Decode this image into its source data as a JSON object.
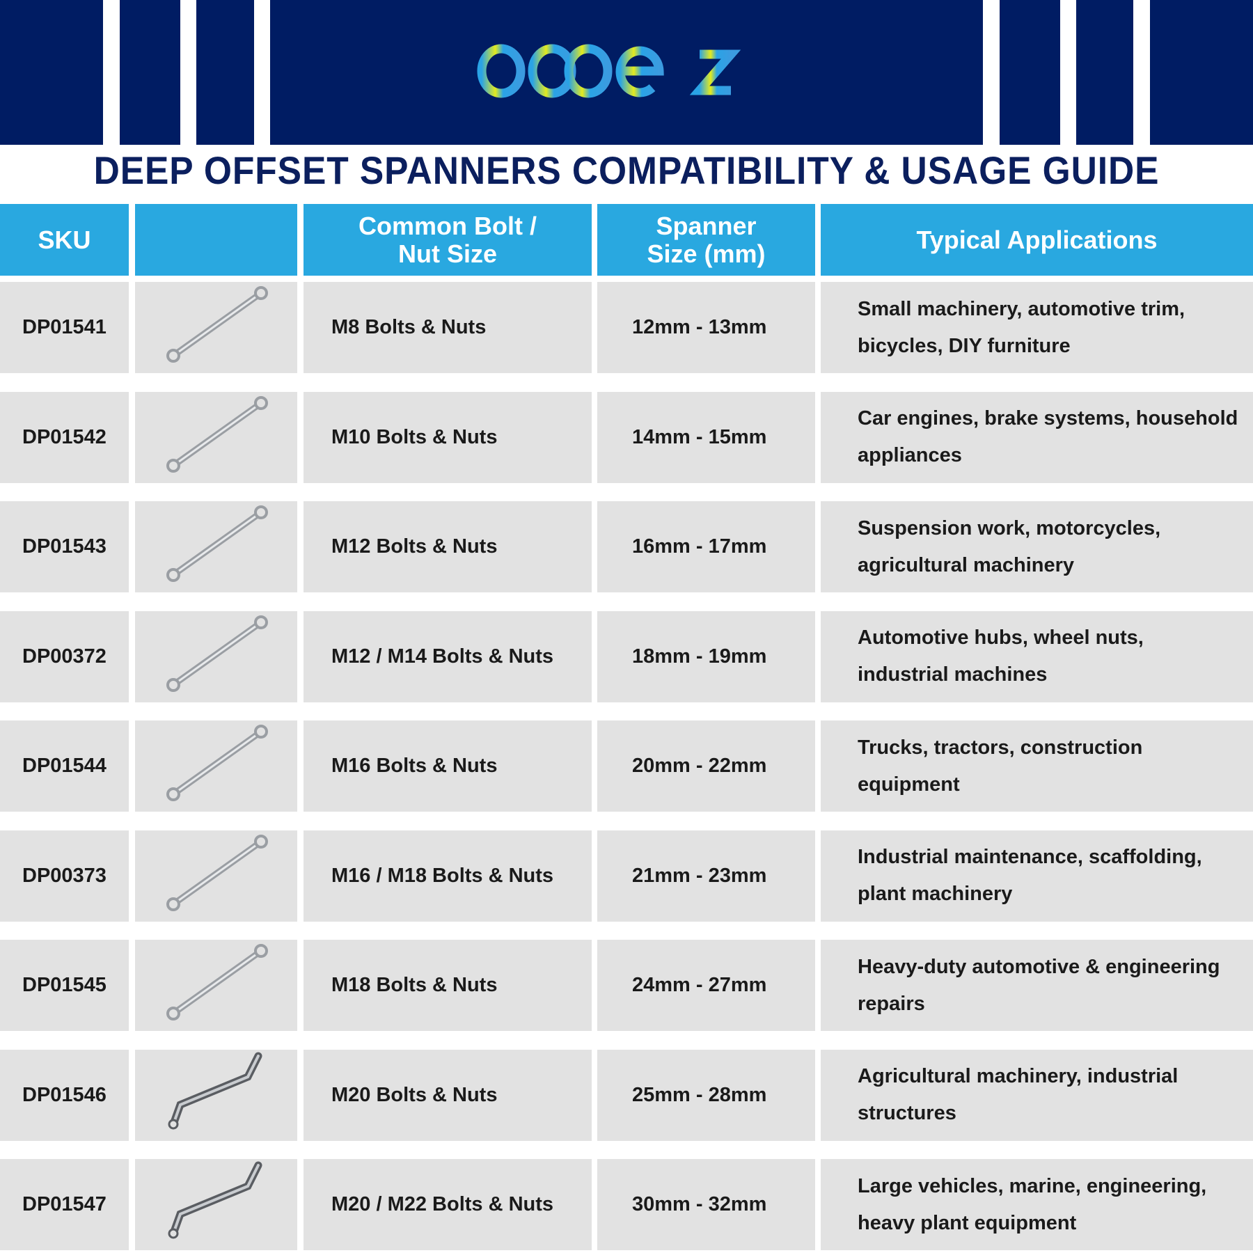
{
  "brand": {
    "logo_text": "dopetz",
    "colors": {
      "navy": "#001c63",
      "accent": "#29a8e0",
      "row": "#e2e2e2"
    }
  },
  "title": "DEEP OFFSET SPANNERS COMPATIBILITY & USAGE GUIDE",
  "headers": [
    "SKU",
    "",
    "Common Bolt / Nut Size",
    "Spanner Size (mm)",
    "Typical Applications"
  ],
  "rows": [
    {
      "sku": "DP01541",
      "image": "spanner-icon",
      "bolt": "M8 Bolts & Nuts",
      "size": "12mm - 13mm",
      "apps": "Small machinery, automotive trim, bicycles, DIY furniture"
    },
    {
      "sku": "DP01542",
      "image": "spanner-icon",
      "bolt": "M10 Bolts & Nuts",
      "size": "14mm - 15mm",
      "apps": "Car engines, brake systems, household appliances"
    },
    {
      "sku": "DP01543",
      "image": "spanner-icon",
      "bolt": "M12 Bolts & Nuts",
      "size": "16mm - 17mm",
      "apps": "Suspension work, motorcycles, agricultural machinery"
    },
    {
      "sku": "DP00372",
      "image": "spanner-icon",
      "bolt": "M12 / M14 Bolts & Nuts",
      "size": "18mm - 19mm",
      "apps": "Automotive hubs, wheel nuts, industrial machines"
    },
    {
      "sku": "DP01544",
      "image": "spanner-icon",
      "bolt": "M16 Bolts & Nuts",
      "size": "20mm - 22mm",
      "apps": "Trucks, tractors, construction equipment"
    },
    {
      "sku": "DP00373",
      "image": "spanner-icon",
      "bolt": "M16 / M18 Bolts & Nuts",
      "size": "21mm - 23mm",
      "apps": "Industrial maintenance, scaffolding, plant machinery"
    },
    {
      "sku": "DP01545",
      "image": "spanner-icon",
      "bolt": "M18 Bolts & Nuts",
      "size": "24mm - 27mm",
      "apps": "Heavy-duty automotive & engineering repairs"
    },
    {
      "sku": "DP01546",
      "image": "offset-spanner-icon",
      "bolt": "M20 Bolts & Nuts",
      "size": "25mm - 28mm",
      "apps": "Agricultural machinery, industrial structures"
    },
    {
      "sku": "DP01547",
      "image": "offset-spanner-icon",
      "bolt": "M20 / M22 Bolts & Nuts",
      "size": "30mm - 32mm",
      "apps": "Large vehicles, marine, engineering, heavy plant equipment"
    }
  ]
}
